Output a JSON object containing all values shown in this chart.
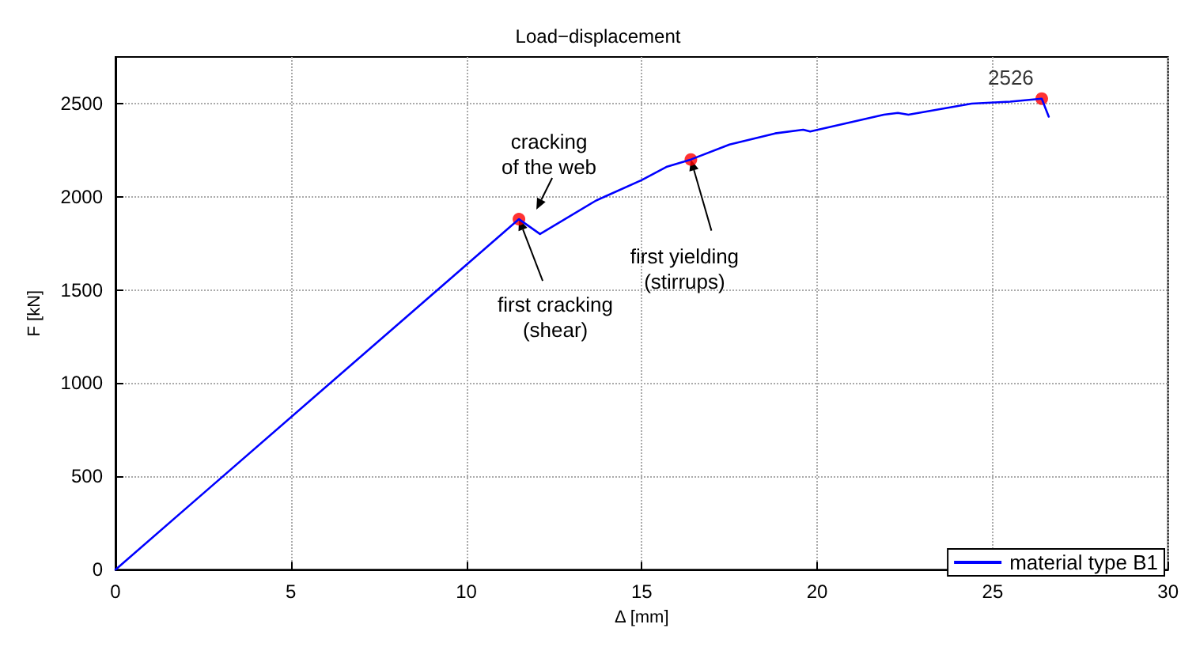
{
  "chart_data": {
    "type": "line",
    "title": "Load−displacement",
    "xlabel": "Δ [mm]",
    "ylabel": "F [kN]",
    "xlim": [
      0,
      30
    ],
    "ylim": [
      0,
      2750
    ],
    "xticks": [
      0,
      5,
      10,
      15,
      20,
      25,
      30
    ],
    "yticks": [
      0,
      500,
      1000,
      1500,
      2000,
      2500
    ],
    "grid": true,
    "legend": "bottom right",
    "marker": "none",
    "line_style": "solid",
    "series": [
      {
        "name": "material type B1",
        "color": "#0000ff",
        "x": [
          0,
          11.5,
          12.1,
          13.7,
          15.0,
          15.7,
          16.4,
          17.5,
          18.8,
          19.6,
          19.8,
          21.9,
          22.3,
          22.6,
          24.4,
          25.5,
          26.4,
          26.6
        ],
        "values": [
          0,
          1880,
          1800,
          1980,
          2090,
          2160,
          2200,
          2280,
          2340,
          2360,
          2350,
          2440,
          2450,
          2440,
          2500,
          2510,
          2526,
          2430
        ]
      },
      {
        "type": "scatter",
        "marker": "circle",
        "color": "#ff0000",
        "x": [
          11.5,
          16.4,
          26.4
        ],
        "values": [
          1880,
          2200,
          2526
        ],
        "value_labels": [
          null,
          null,
          "2526"
        ]
      }
    ],
    "annotations": [
      "cracking\nof the web",
      {
        "text": "first cracking\n(shear)",
        "x": 11.5,
        "y": 1880
      },
      {
        "text": "first yielding\n(stirrups)",
        "x": 16.4,
        "y": 2200
      }
    ]
  }
}
